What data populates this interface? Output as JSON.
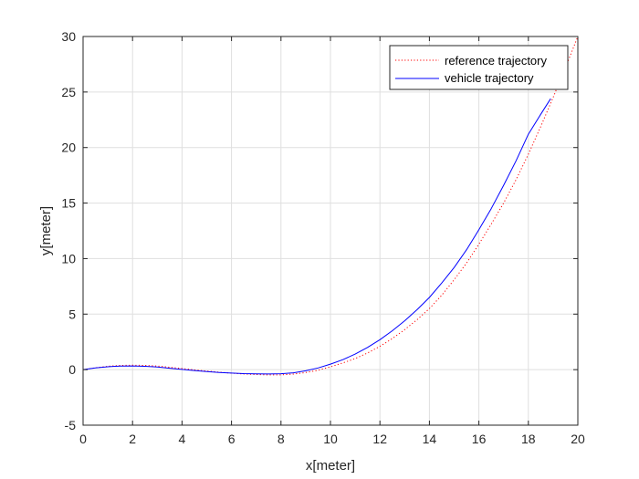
{
  "chart_data": {
    "type": "line",
    "title": "",
    "xlabel": "x[meter]",
    "ylabel": "y[meter]",
    "xlim": [
      0,
      20
    ],
    "ylim": [
      -5,
      30
    ],
    "xticks": [
      0,
      2,
      4,
      6,
      8,
      10,
      12,
      14,
      16,
      18,
      20
    ],
    "yticks": [
      -5,
      0,
      5,
      10,
      15,
      20,
      25,
      30
    ],
    "grid": true,
    "legend_position": "top-right",
    "series": [
      {
        "name": "reference trajectory",
        "color": "#ff0000",
        "style": "dotted",
        "x": [
          0,
          0.5,
          1,
          1.5,
          2,
          2.5,
          3,
          3.5,
          4,
          4.5,
          5,
          5.5,
          6,
          6.5,
          7,
          7.5,
          8,
          8.5,
          9,
          9.5,
          10,
          10.5,
          11,
          11.5,
          12,
          12.5,
          13,
          13.5,
          14,
          14.5,
          15,
          15.5,
          16,
          16.5,
          17,
          17.5,
          18,
          18.5,
          19,
          19.5,
          20
        ],
        "y": [
          0,
          0.17,
          0.3,
          0.38,
          0.4,
          0.38,
          0.32,
          0.22,
          0.1,
          -0.02,
          -0.13,
          -0.23,
          -0.32,
          -0.39,
          -0.44,
          -0.47,
          -0.47,
          -0.4,
          -0.26,
          -0.05,
          0.25,
          0.6,
          1.0,
          1.5,
          2.1,
          2.8,
          3.6,
          4.5,
          5.5,
          6.7,
          8.1,
          9.6,
          11.3,
          13.1,
          15.0,
          17.1,
          19.4,
          21.9,
          24.5,
          27.2,
          30.0
        ]
      },
      {
        "name": "vehicle trajectory",
        "color": "#0000ff",
        "style": "solid",
        "x": [
          0,
          0.5,
          1,
          1.5,
          2,
          2.5,
          3,
          3.5,
          4,
          4.5,
          5,
          5.5,
          6,
          6.5,
          7,
          7.5,
          8,
          8.5,
          9,
          9.5,
          10,
          10.5,
          11,
          11.5,
          12,
          12.5,
          13,
          13.5,
          14,
          14.5,
          15,
          15.5,
          16,
          16.5,
          17,
          17.5,
          18,
          18.5,
          18.9
        ],
        "y": [
          0,
          0.15,
          0.26,
          0.32,
          0.33,
          0.3,
          0.23,
          0.13,
          0.02,
          -0.08,
          -0.17,
          -0.25,
          -0.31,
          -0.36,
          -0.38,
          -0.39,
          -0.37,
          -0.28,
          -0.1,
          0.15,
          0.5,
          0.9,
          1.4,
          2.0,
          2.7,
          3.5,
          4.4,
          5.4,
          6.5,
          7.8,
          9.2,
          10.8,
          12.6,
          14.5,
          16.6,
          18.8,
          21.2,
          23.0,
          24.4
        ]
      }
    ]
  }
}
